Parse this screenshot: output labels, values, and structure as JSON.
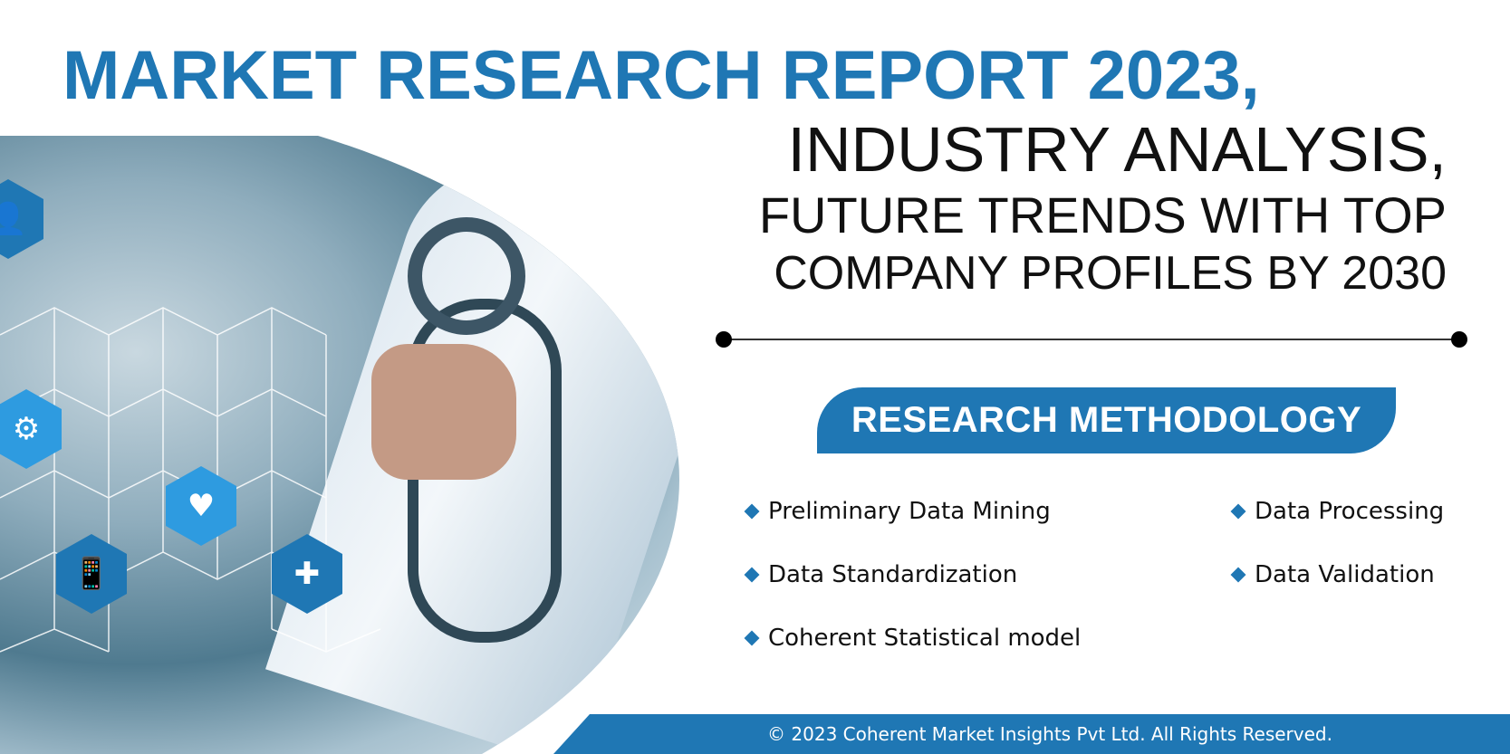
{
  "headline": {
    "line1": "MARKET RESEARCH REPORT 2023,",
    "line2": "INDUSTRY ANALYSIS,",
    "line3": "FUTURE TRENDS WITH TOP",
    "line4": "COMPANY PROFILES BY 2030"
  },
  "section": {
    "title": "RESEARCH METHODOLOGY"
  },
  "methodology": [
    {
      "label": "Preliminary Data Mining"
    },
    {
      "label": "Data Processing"
    },
    {
      "label": "Data Standardization"
    },
    {
      "label": "Data Validation"
    },
    {
      "label": "Coherent Statistical model"
    }
  ],
  "footer": {
    "copyright": "© 2023 Coherent Market Insights Pvt Ltd. All Rights Reserved."
  },
  "colors": {
    "brand": "#1f77b4",
    "text": "#111111"
  },
  "icons": [
    "user-icon",
    "laptop-gears-icon",
    "heart-hand-icon",
    "mobile-ecg-icon",
    "doctor-icon"
  ]
}
